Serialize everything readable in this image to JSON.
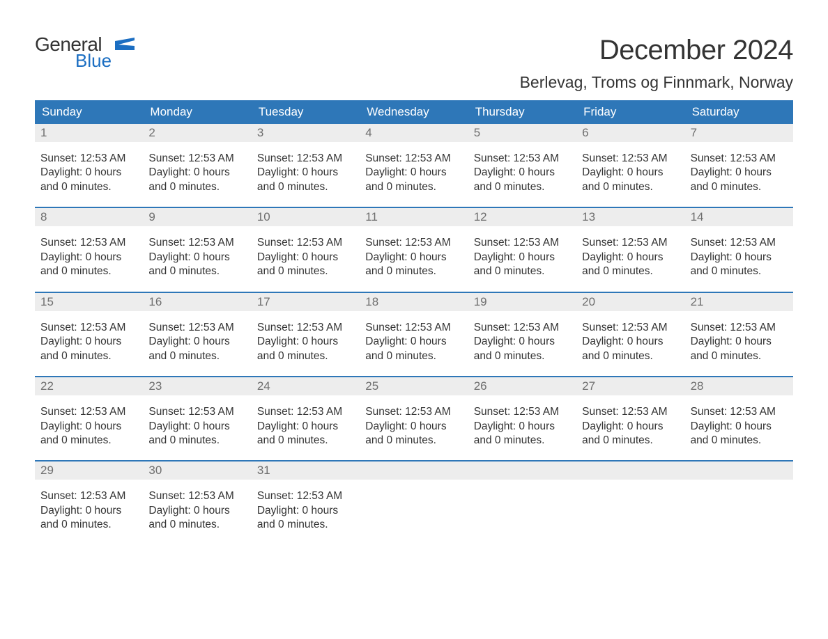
{
  "logo": {
    "general": "General",
    "blue": "Blue",
    "flag_color": "#1b6ec2"
  },
  "title": "December 2024",
  "location": "Berlevag, Troms og Finnmark, Norway",
  "colors": {
    "header_bg": "#2e77b8",
    "header_text": "#ffffff",
    "daynum_bg": "#ededed",
    "daynum_text": "#6f6f6f",
    "body_text": "#333333",
    "week_border": "#2e77b8",
    "page_bg": "#ffffff",
    "logo_blue": "#1b6ec2"
  },
  "weekdays": [
    "Sunday",
    "Monday",
    "Tuesday",
    "Wednesday",
    "Thursday",
    "Friday",
    "Saturday"
  ],
  "weeks": [
    [
      {
        "num": "1",
        "sunset": "Sunset: 12:53 AM",
        "daylight1": "Daylight: 0 hours",
        "daylight2": "and 0 minutes."
      },
      {
        "num": "2",
        "sunset": "Sunset: 12:53 AM",
        "daylight1": "Daylight: 0 hours",
        "daylight2": "and 0 minutes."
      },
      {
        "num": "3",
        "sunset": "Sunset: 12:53 AM",
        "daylight1": "Daylight: 0 hours",
        "daylight2": "and 0 minutes."
      },
      {
        "num": "4",
        "sunset": "Sunset: 12:53 AM",
        "daylight1": "Daylight: 0 hours",
        "daylight2": "and 0 minutes."
      },
      {
        "num": "5",
        "sunset": "Sunset: 12:53 AM",
        "daylight1": "Daylight: 0 hours",
        "daylight2": "and 0 minutes."
      },
      {
        "num": "6",
        "sunset": "Sunset: 12:53 AM",
        "daylight1": "Daylight: 0 hours",
        "daylight2": "and 0 minutes."
      },
      {
        "num": "7",
        "sunset": "Sunset: 12:53 AM",
        "daylight1": "Daylight: 0 hours",
        "daylight2": "and 0 minutes."
      }
    ],
    [
      {
        "num": "8",
        "sunset": "Sunset: 12:53 AM",
        "daylight1": "Daylight: 0 hours",
        "daylight2": "and 0 minutes."
      },
      {
        "num": "9",
        "sunset": "Sunset: 12:53 AM",
        "daylight1": "Daylight: 0 hours",
        "daylight2": "and 0 minutes."
      },
      {
        "num": "10",
        "sunset": "Sunset: 12:53 AM",
        "daylight1": "Daylight: 0 hours",
        "daylight2": "and 0 minutes."
      },
      {
        "num": "11",
        "sunset": "Sunset: 12:53 AM",
        "daylight1": "Daylight: 0 hours",
        "daylight2": "and 0 minutes."
      },
      {
        "num": "12",
        "sunset": "Sunset: 12:53 AM",
        "daylight1": "Daylight: 0 hours",
        "daylight2": "and 0 minutes."
      },
      {
        "num": "13",
        "sunset": "Sunset: 12:53 AM",
        "daylight1": "Daylight: 0 hours",
        "daylight2": "and 0 minutes."
      },
      {
        "num": "14",
        "sunset": "Sunset: 12:53 AM",
        "daylight1": "Daylight: 0 hours",
        "daylight2": "and 0 minutes."
      }
    ],
    [
      {
        "num": "15",
        "sunset": "Sunset: 12:53 AM",
        "daylight1": "Daylight: 0 hours",
        "daylight2": "and 0 minutes."
      },
      {
        "num": "16",
        "sunset": "Sunset: 12:53 AM",
        "daylight1": "Daylight: 0 hours",
        "daylight2": "and 0 minutes."
      },
      {
        "num": "17",
        "sunset": "Sunset: 12:53 AM",
        "daylight1": "Daylight: 0 hours",
        "daylight2": "and 0 minutes."
      },
      {
        "num": "18",
        "sunset": "Sunset: 12:53 AM",
        "daylight1": "Daylight: 0 hours",
        "daylight2": "and 0 minutes."
      },
      {
        "num": "19",
        "sunset": "Sunset: 12:53 AM",
        "daylight1": "Daylight: 0 hours",
        "daylight2": "and 0 minutes."
      },
      {
        "num": "20",
        "sunset": "Sunset: 12:53 AM",
        "daylight1": "Daylight: 0 hours",
        "daylight2": "and 0 minutes."
      },
      {
        "num": "21",
        "sunset": "Sunset: 12:53 AM",
        "daylight1": "Daylight: 0 hours",
        "daylight2": "and 0 minutes."
      }
    ],
    [
      {
        "num": "22",
        "sunset": "Sunset: 12:53 AM",
        "daylight1": "Daylight: 0 hours",
        "daylight2": "and 0 minutes."
      },
      {
        "num": "23",
        "sunset": "Sunset: 12:53 AM",
        "daylight1": "Daylight: 0 hours",
        "daylight2": "and 0 minutes."
      },
      {
        "num": "24",
        "sunset": "Sunset: 12:53 AM",
        "daylight1": "Daylight: 0 hours",
        "daylight2": "and 0 minutes."
      },
      {
        "num": "25",
        "sunset": "Sunset: 12:53 AM",
        "daylight1": "Daylight: 0 hours",
        "daylight2": "and 0 minutes."
      },
      {
        "num": "26",
        "sunset": "Sunset: 12:53 AM",
        "daylight1": "Daylight: 0 hours",
        "daylight2": "and 0 minutes."
      },
      {
        "num": "27",
        "sunset": "Sunset: 12:53 AM",
        "daylight1": "Daylight: 0 hours",
        "daylight2": "and 0 minutes."
      },
      {
        "num": "28",
        "sunset": "Sunset: 12:53 AM",
        "daylight1": "Daylight: 0 hours",
        "daylight2": "and 0 minutes."
      }
    ],
    [
      {
        "num": "29",
        "sunset": "Sunset: 12:53 AM",
        "daylight1": "Daylight: 0 hours",
        "daylight2": "and 0 minutes."
      },
      {
        "num": "30",
        "sunset": "Sunset: 12:53 AM",
        "daylight1": "Daylight: 0 hours",
        "daylight2": "and 0 minutes."
      },
      {
        "num": "31",
        "sunset": "Sunset: 12:53 AM",
        "daylight1": "Daylight: 0 hours",
        "daylight2": "and 0 minutes."
      },
      {
        "empty": true
      },
      {
        "empty": true
      },
      {
        "empty": true
      },
      {
        "empty": true
      }
    ]
  ]
}
